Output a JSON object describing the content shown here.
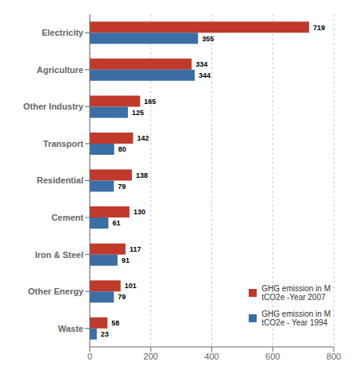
{
  "chart_data": {
    "type": "bar",
    "orientation": "horizontal",
    "categories": [
      "Electricity",
      "Agriculture",
      "Other Industry",
      "Transport",
      "Residential",
      "Cement",
      "Iron & Steel",
      "Other Energy",
      "Waste"
    ],
    "series": [
      {
        "name": "GHG emission in M\ntCO2e -Year 2007",
        "color": "#c0392b",
        "values": [
          719,
          334,
          165,
          142,
          138,
          130,
          117,
          101,
          58
        ]
      },
      {
        "name": "GHG emission in M\ntCO2e - Year 1994",
        "color": "#3a6ea5",
        "values": [
          355,
          344,
          125,
          80,
          79,
          61,
          91,
          79,
          23
        ]
      }
    ],
    "xlim": [
      0,
      800
    ],
    "xticks": [
      0,
      200,
      400,
      600,
      800
    ],
    "grid": true,
    "data_labels": true,
    "legend": "lower right"
  }
}
